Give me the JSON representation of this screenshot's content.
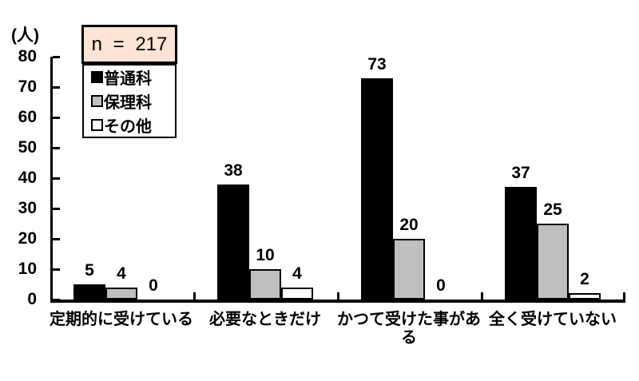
{
  "chart_data": {
    "type": "bar",
    "title": "",
    "ylabel": "(人)",
    "xlabel": "",
    "annotation": "n = 217",
    "categories": [
      "定期的に受けている",
      "必要なときだけ",
      "かつて受けた事がある",
      "全く受けていない"
    ],
    "series": [
      {
        "name": "普通科",
        "color": "#000000",
        "values": [
          5,
          38,
          73,
          37
        ]
      },
      {
        "name": "保理科",
        "color": "#bfbfbf",
        "values": [
          4,
          10,
          20,
          25
        ]
      },
      {
        "name": "その他",
        "color": "#ffffff",
        "values": [
          0,
          4,
          0,
          2
        ]
      }
    ],
    "ylim": [
      0,
      80
    ],
    "ytick_step": 10,
    "grid": false,
    "legend_position": "top-left",
    "colors": {
      "annotation_box_fill": "#fce4d6",
      "axis": "#000000",
      "bar_border": "#000000"
    }
  }
}
